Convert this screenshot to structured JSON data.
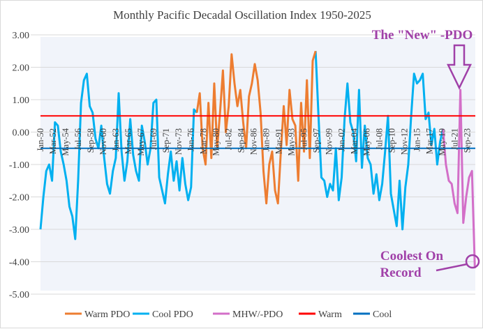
{
  "chart_data": {
    "type": "line",
    "title": "Monthly Pacific Decadal Oscillation Index 1950-2025",
    "ylim": [
      -5,
      3
    ],
    "yticks": [
      "3.00",
      "2.00",
      "1.00",
      "0.00",
      "-1.00",
      "-2.00",
      "-3.00",
      "-4.00",
      "-5.00"
    ],
    "xticks": [
      "Jan-50",
      "Mar-52",
      "May-54",
      "Jul-56",
      "Sep-58",
      "Nov-60",
      "Jan-63",
      "Mar-65",
      "May-67",
      "Jul-69",
      "Sep-71",
      "Nov-73",
      "Jan-76",
      "Mar-78",
      "May-80",
      "Jul-82",
      "Sep-84",
      "Nov-86",
      "Jan-89",
      "Mar-91",
      "May-93",
      "Jul-95",
      "Sep-97",
      "Nov-99",
      "Jan-02",
      "Mar-04",
      "May-06",
      "Jul-08",
      "Sep-10",
      "Nov-12",
      "Jan-15",
      "Mar-17",
      "May-19",
      "Jul-21",
      "Sep-23"
    ],
    "grid": true,
    "legend_placement": "bottom",
    "series": [
      {
        "name": "Warm PDO",
        "color": "#ED7D31",
        "x": [
          "1977-01",
          "1977-07",
          "1978-01",
          "1978-07",
          "1979-01",
          "1979-07",
          "1980-01",
          "1980-07",
          "1981-01",
          "1981-07",
          "1982-01",
          "1982-07",
          "1983-01",
          "1983-07",
          "1984-01",
          "1984-07",
          "1985-01",
          "1985-07",
          "1986-01",
          "1986-07",
          "1987-01",
          "1987-07",
          "1988-01",
          "1988-07",
          "1989-01",
          "1989-07",
          "1990-01",
          "1990-07",
          "1991-01",
          "1991-07",
          "1992-01",
          "1992-07",
          "1993-01",
          "1993-07",
          "1994-01",
          "1994-07",
          "1995-01",
          "1995-07",
          "1996-01",
          "1996-07",
          "1997-01",
          "1997-07"
        ],
        "values": [
          0.6,
          1.2,
          -0.5,
          -1.0,
          0.9,
          -0.8,
          1.5,
          -0.5,
          0.6,
          1.9,
          0.0,
          0.8,
          2.4,
          1.5,
          0.8,
          1.3,
          0.3,
          -0.5,
          1.1,
          1.5,
          2.1,
          1.6,
          0.6,
          -1.2,
          -2.2,
          -1.0,
          -0.6,
          -1.8,
          -2.2,
          -0.6,
          0.8,
          -0.4,
          1.3,
          0.4,
          0.2,
          -1.5,
          0.9,
          -0.6,
          1.6,
          -0.8,
          2.2,
          2.5
        ]
      },
      {
        "name": "Cool PDO",
        "color": "#00B0F0",
        "x": [
          "1950-01",
          "1950-07",
          "1951-01",
          "1951-07",
          "1952-01",
          "1952-07",
          "1953-01",
          "1953-07",
          "1954-01",
          "1954-07",
          "1955-01",
          "1955-07",
          "1956-01",
          "1956-07",
          "1957-01",
          "1957-07",
          "1958-01",
          "1958-07",
          "1959-01",
          "1959-07",
          "1960-01",
          "1960-07",
          "1961-01",
          "1961-07",
          "1962-01",
          "1962-07",
          "1963-01",
          "1963-07",
          "1964-01",
          "1964-07",
          "1965-01",
          "1965-07",
          "1966-01",
          "1966-07",
          "1967-01",
          "1967-07",
          "1968-01",
          "1968-07",
          "1969-01",
          "1969-07",
          "1970-01",
          "1970-07",
          "1971-01",
          "1971-07",
          "1972-01",
          "1972-07",
          "1973-01",
          "1973-07",
          "1974-01",
          "1974-07",
          "1975-01",
          "1975-07",
          "1976-01",
          "1976-07",
          "1977-01"
        ],
        "values": [
          -3.0,
          -2.0,
          -1.2,
          -1.0,
          -1.5,
          0.3,
          0.2,
          -0.6,
          -1.0,
          -1.5,
          -2.3,
          -2.6,
          -3.3,
          -1.5,
          0.9,
          1.6,
          1.8,
          0.8,
          0.6,
          -0.2,
          -0.5,
          0.2,
          -0.8,
          -1.6,
          -1.9,
          -1.2,
          -0.8,
          1.2,
          -0.6,
          -1.5,
          -0.9,
          0.4,
          -0.7,
          -1.2,
          -1.5,
          0.2,
          -0.3,
          -1.0,
          -0.5,
          0.9,
          1.0,
          -1.4,
          -1.8,
          -2.2,
          -1.3,
          -0.6,
          -1.5,
          -0.9,
          -1.8,
          -0.8,
          -1.6,
          -2.1,
          -1.7,
          0.7,
          0.6
        ],
        "x2": [
          "1997-07",
          "1998-01",
          "1998-07",
          "1999-01",
          "1999-07",
          "2000-01",
          "2000-07",
          "2001-01",
          "2001-07",
          "2002-01",
          "2002-07",
          "2003-01",
          "2003-07",
          "2004-01",
          "2004-07",
          "2005-01",
          "2005-07",
          "2006-01",
          "2006-07",
          "2007-01",
          "2007-07",
          "2008-01",
          "2008-07",
          "2009-01",
          "2009-07",
          "2010-01",
          "2010-07",
          "2011-01",
          "2011-07",
          "2012-01",
          "2012-07",
          "2013-01",
          "2013-07",
          "2014-01",
          "2014-07",
          "2015-01",
          "2015-07",
          "2016-01",
          "2016-07",
          "2017-01",
          "2017-07",
          "2018-01",
          "2018-07",
          "2019-01",
          "2019-07"
        ],
        "values2": [
          2.5,
          0.5,
          -1.4,
          -1.5,
          -2.0,
          -1.6,
          -1.8,
          -0.5,
          -2.1,
          -1.4,
          0.4,
          1.5,
          0.3,
          0.0,
          -0.9,
          1.3,
          -1.1,
          0.2,
          -0.8,
          -1.0,
          -1.9,
          -1.3,
          -2.1,
          -1.6,
          -0.6,
          0.5,
          -1.9,
          -2.4,
          -2.9,
          -1.5,
          -3.0,
          -1.7,
          -1.0,
          0.5,
          1.8,
          1.5,
          1.6,
          1.8,
          0.4,
          0.6,
          -0.4,
          0.1,
          -1.0,
          -0.3,
          0.1
        ]
      },
      {
        "name": "MHW/-PDO",
        "color": "#D36FC8",
        "x": [
          "2019-07",
          "2020-01",
          "2020-07",
          "2021-01",
          "2021-07",
          "2022-01",
          "2022-07",
          "2023-01",
          "2023-07",
          "2024-01",
          "2024-07",
          "2025-01"
        ],
        "values": [
          0.1,
          -1.0,
          -1.5,
          -1.6,
          -2.2,
          -2.5,
          1.3,
          -2.8,
          -2.0,
          -1.4,
          -1.2,
          -4.2
        ]
      },
      {
        "name": "Warm",
        "color": "#FF0000",
        "constant": 0.5
      },
      {
        "name": "Cool",
        "color": "#0070C0",
        "constant": -0.5
      }
    ],
    "annotations": {
      "new_pdo": "The \"New\" -PDO",
      "coolest_line1": "Coolest On",
      "coolest_line2": "Record"
    }
  }
}
